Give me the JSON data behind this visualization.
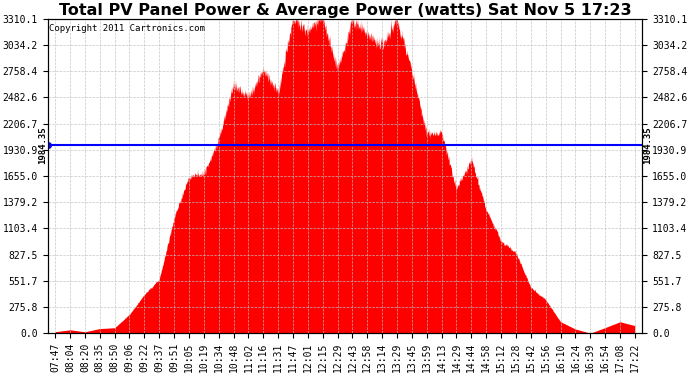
{
  "title": "Total PV Panel Power & Average Power (watts) Sat Nov 5 17:23",
  "copyright": "Copyright 2011 Cartronics.com",
  "avg_value": 1984.35,
  "y_max": 3310.1,
  "y_min": 0.0,
  "y_ticks": [
    0.0,
    275.8,
    551.7,
    827.5,
    1103.4,
    1379.2,
    1655.0,
    1930.9,
    2206.7,
    2482.6,
    2758.4,
    3034.2,
    3310.1
  ],
  "y_tick_labels": [
    "0.0",
    "275.8",
    "551.7",
    "827.5",
    "1103.4",
    "1379.2",
    "1655.0",
    "1930.9",
    "2206.7",
    "2482.6",
    "2758.4",
    "3034.2",
    "3310.1"
  ],
  "fill_color": "#FF0000",
  "line_color": "#0000FF",
  "background_color": "#FFFFFF",
  "grid_color": "#C0C0C0",
  "title_fontsize": 11.5,
  "copyright_fontsize": 6.5,
  "tick_fontsize": 7,
  "avg_label": "1984.35",
  "x_tick_labels": [
    "07:47",
    "08:04",
    "08:20",
    "08:35",
    "08:50",
    "09:06",
    "09:22",
    "09:37",
    "09:51",
    "10:05",
    "10:19",
    "10:34",
    "10:48",
    "11:02",
    "11:16",
    "11:31",
    "11:47",
    "12:01",
    "12:15",
    "12:29",
    "12:43",
    "12:58",
    "13:14",
    "13:29",
    "13:45",
    "13:59",
    "14:13",
    "14:29",
    "14:44",
    "14:58",
    "15:12",
    "15:28",
    "15:42",
    "15:56",
    "16:10",
    "16:24",
    "16:39",
    "16:54",
    "17:08",
    "17:22"
  ]
}
